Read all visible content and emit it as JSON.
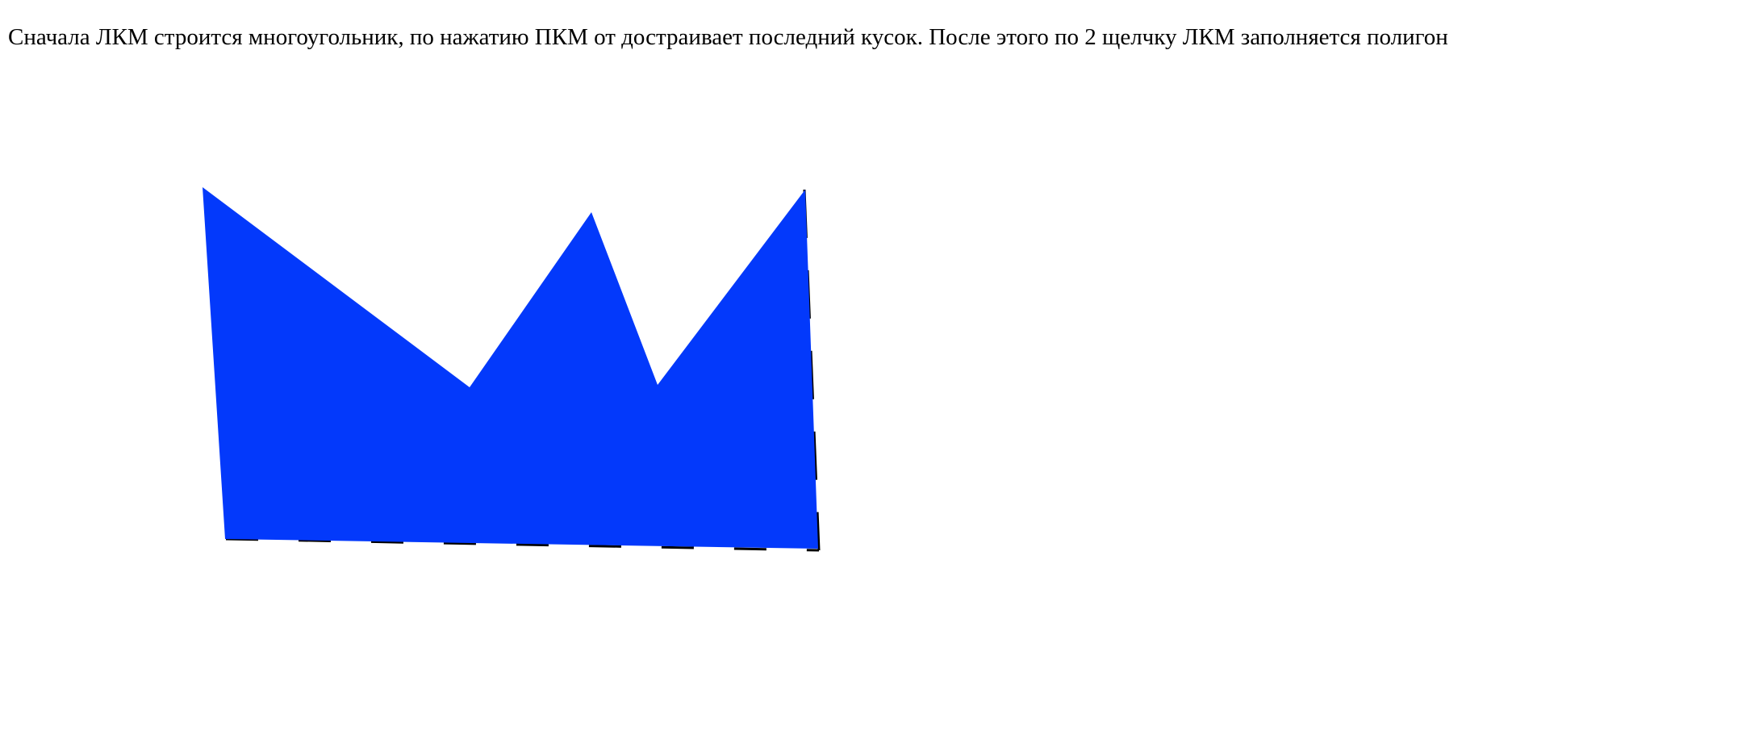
{
  "page": {
    "instructions": "Сначала ЛКМ строится многоугольник, по нажатию ПКМ от достраивает последний кусок. После этого по 2 щелчку ЛКМ заполняется полигон"
  },
  "canvas": {
    "fill_color": "#0339fb",
    "edge_color": "#000000",
    "background": "#ffffff"
  }
}
